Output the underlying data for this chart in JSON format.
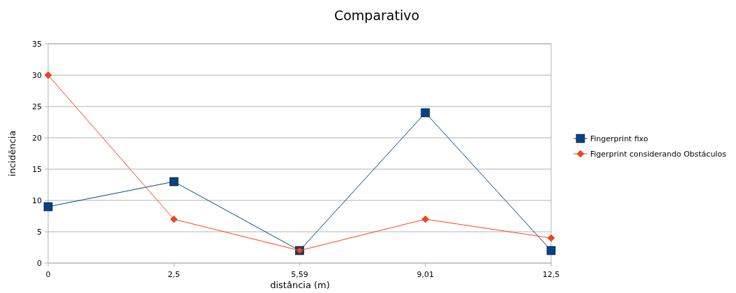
{
  "chart_data": {
    "type": "line",
    "title": "Comparativo",
    "xlabel": "distância (m)",
    "ylabel": "incidência",
    "categories": [
      "0",
      "2,5",
      "5,59",
      "9,01",
      "12,5"
    ],
    "series": [
      {
        "name": "Fingerprint fixo",
        "color": "#004586",
        "marker": "square",
        "values": [
          9,
          13,
          2,
          24,
          2
        ]
      },
      {
        "name": "Figerprint considerando Obstáculos",
        "color": "#ff420e",
        "marker": "diamond",
        "values": [
          30,
          7,
          2,
          7,
          4
        ]
      }
    ],
    "ylim": [
      0,
      35
    ],
    "yticks": [
      0,
      5,
      10,
      15,
      20,
      25,
      30,
      35
    ],
    "grid": "y",
    "legend": "right",
    "line_style": "solid"
  }
}
